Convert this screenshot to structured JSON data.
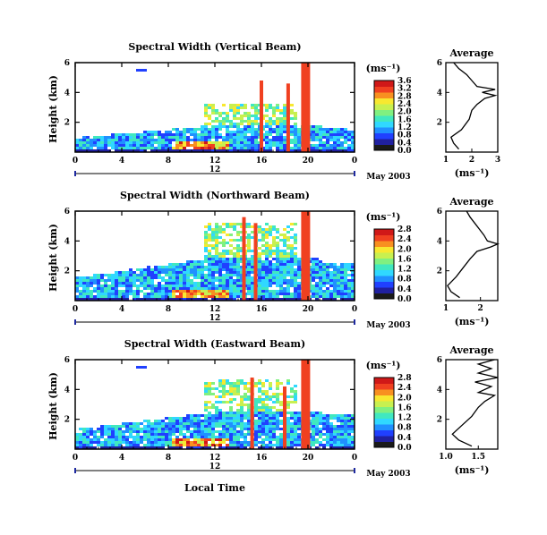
{
  "figure": {
    "xlabel": "Local Time",
    "date_label": "May 2003",
    "colorbar_unit": "(ms⁻¹)",
    "avg_title": "Average",
    "avg_unit": "(ms⁻¹)"
  },
  "colors": {
    "jet": [
      "#1a1a1a",
      "#2020a0",
      "#2040ff",
      "#2090ff",
      "#30d8ff",
      "#40e8c0",
      "#80f080",
      "#c8f050",
      "#f8e830",
      "#f89020",
      "#f04020",
      "#d01818"
    ]
  },
  "chart_data": [
    {
      "type": "heatmap",
      "title": "Spectral Width (Vertical Beam)",
      "ylabel": "Height (km)",
      "xlim": [
        0,
        24
      ],
      "ylim": [
        0,
        6
      ],
      "xticks": [
        "0",
        "4",
        "8",
        "12",
        "16",
        "20",
        "0"
      ],
      "x2_center_label": "12",
      "yticks": [
        "2",
        "4",
        "6"
      ],
      "colorbar": {
        "ticks": [
          "3.6",
          "3.2",
          "2.8",
          "2.4",
          "2.0",
          "1.6",
          "1.2",
          "0.8",
          "0.4",
          "0.0"
        ],
        "max": 3.6
      },
      "features": {
        "low_layer_top_km": 1.9,
        "streaks": [
          {
            "t": 16.0,
            "top_km": 4.8
          },
          {
            "t": 18.3,
            "top_km": 4.6
          },
          {
            "t": 19.8,
            "top_km": 6.0
          }
        ]
      },
      "average": {
        "xlim": [
          1,
          3
        ],
        "xticks": [
          "1",
          "2",
          "3"
        ],
        "yticks": [
          "2",
          "4",
          "6"
        ],
        "profile": [
          [
            1.5,
            0.2
          ],
          [
            1.3,
            0.6
          ],
          [
            1.2,
            1.0
          ],
          [
            1.6,
            1.5
          ],
          [
            1.9,
            2.2
          ],
          [
            2.0,
            2.8
          ],
          [
            2.2,
            3.2
          ],
          [
            2.5,
            3.6
          ],
          [
            2.9,
            3.8
          ],
          [
            2.4,
            4.0
          ],
          [
            2.9,
            4.2
          ],
          [
            2.2,
            4.4
          ],
          [
            2.0,
            4.8
          ],
          [
            1.8,
            5.2
          ],
          [
            1.5,
            5.6
          ],
          [
            1.3,
            6.0
          ]
        ]
      }
    },
    {
      "type": "heatmap",
      "title": "Spectral Width (Northward Beam)",
      "ylabel": "Height (km)",
      "xlim": [
        0,
        24
      ],
      "ylim": [
        0,
        6
      ],
      "xticks": [
        "0",
        "4",
        "8",
        "12",
        "16",
        "20",
        "0"
      ],
      "x2_center_label": "12",
      "yticks": [
        "2",
        "4",
        "6"
      ],
      "colorbar": {
        "ticks": [
          "2.8",
          "2.4",
          "2.0",
          "1.6",
          "1.2",
          "0.8",
          "0.4",
          "0.0"
        ],
        "max": 2.8
      },
      "features": {
        "low_layer_top_km": 3.0,
        "streaks": [
          {
            "t": 14.5,
            "top_km": 5.6
          },
          {
            "t": 15.5,
            "top_km": 5.2
          },
          {
            "t": 19.8,
            "top_km": 6.0
          }
        ]
      },
      "average": {
        "xlim": [
          1,
          2.5
        ],
        "xticks": [
          "1",
          "2"
        ],
        "yticks": [
          "2",
          "4",
          "6"
        ],
        "profile": [
          [
            1.4,
            0.2
          ],
          [
            1.15,
            0.6
          ],
          [
            1.05,
            1.0
          ],
          [
            1.3,
            1.6
          ],
          [
            1.5,
            2.2
          ],
          [
            1.7,
            2.8
          ],
          [
            1.9,
            3.3
          ],
          [
            2.3,
            3.6
          ],
          [
            2.5,
            3.8
          ],
          [
            2.2,
            4.0
          ],
          [
            2.1,
            4.4
          ],
          [
            1.9,
            5.0
          ],
          [
            1.7,
            5.6
          ],
          [
            1.6,
            6.0
          ]
        ]
      }
    },
    {
      "type": "heatmap",
      "title": "Spectral Width (Eastward Beam)",
      "ylabel": "Height (km)",
      "xlim": [
        0,
        24
      ],
      "ylim": [
        0,
        6
      ],
      "xticks": [
        "0",
        "4",
        "8",
        "12",
        "16",
        "20",
        "0"
      ],
      "x2_center_label": "12",
      "yticks": [
        "2",
        "4",
        "6"
      ],
      "colorbar": {
        "ticks": [
          "2.8",
          "2.4",
          "2.0",
          "1.6",
          "1.2",
          "0.8",
          "0.4",
          "0.0"
        ],
        "max": 2.8
      },
      "features": {
        "low_layer_top_km": 2.6,
        "streaks": [
          {
            "t": 15.2,
            "top_km": 4.8
          },
          {
            "t": 18.0,
            "top_km": 4.2
          },
          {
            "t": 19.8,
            "top_km": 6.0
          }
        ]
      },
      "average": {
        "xlim": [
          1.0,
          1.8
        ],
        "xticks": [
          "1.0",
          "1.5"
        ],
        "yticks": [
          "2",
          "4",
          "6"
        ],
        "profile": [
          [
            1.4,
            0.2
          ],
          [
            1.2,
            0.6
          ],
          [
            1.1,
            1.0
          ],
          [
            1.25,
            1.6
          ],
          [
            1.4,
            2.2
          ],
          [
            1.5,
            2.8
          ],
          [
            1.6,
            3.2
          ],
          [
            1.75,
            3.6
          ],
          [
            1.5,
            3.8
          ],
          [
            1.7,
            4.2
          ],
          [
            1.45,
            4.5
          ],
          [
            1.8,
            4.8
          ],
          [
            1.5,
            5.1
          ],
          [
            1.7,
            5.4
          ],
          [
            1.5,
            5.7
          ],
          [
            1.75,
            6.0
          ]
        ]
      }
    }
  ]
}
